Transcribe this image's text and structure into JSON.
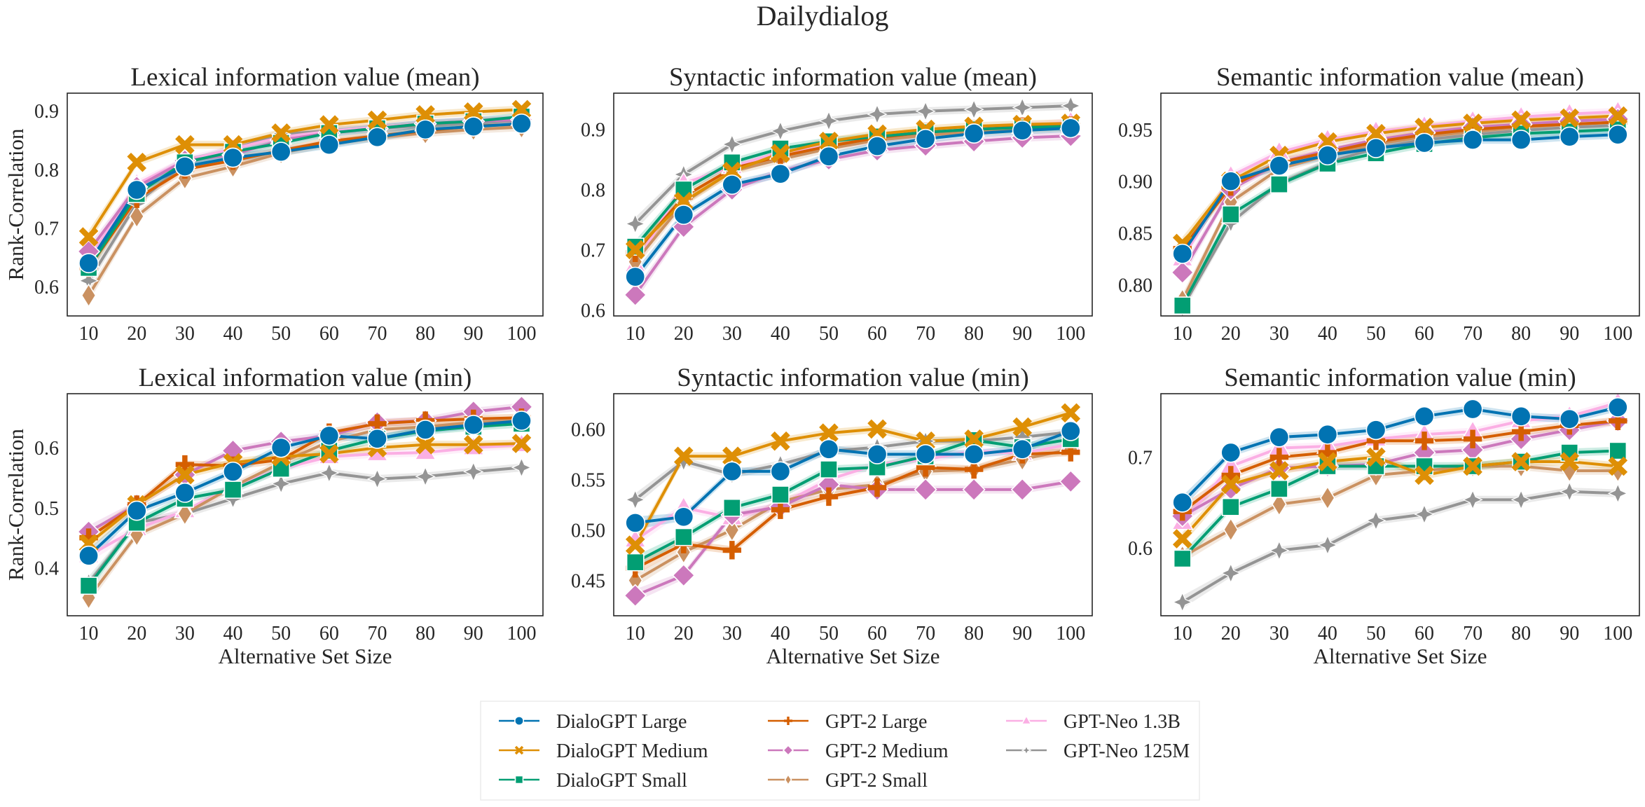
{
  "chart_data": {
    "type": "line",
    "suptitle": "Dailydialog",
    "x": [
      10,
      20,
      30,
      40,
      50,
      60,
      70,
      80,
      90,
      100
    ],
    "xlabel": "Alternative Set Size",
    "ylabel": "Rank-Correlation",
    "colors": {
      "DialoGPT Large": "#0173b2",
      "DialoGPT Medium": "#de8f05",
      "DialoGPT Small": "#029e73",
      "GPT-2 Large": "#d55e00",
      "GPT-2 Medium": "#cc78bc",
      "GPT-2 Small": "#ca9161",
      "GPT-Neo 1.3B": "#fbafe4",
      "GPT-Neo 125M": "#949494"
    },
    "markers": {
      "DialoGPT Large": "circle",
      "DialoGPT Medium": "x",
      "DialoGPT Small": "square",
      "GPT-2 Large": "plus",
      "GPT-2 Medium": "diamond",
      "GPT-2 Small": "thin-diamond",
      "GPT-Neo 1.3B": "triangle",
      "GPT-Neo 125M": "star"
    },
    "legend": {
      "placement": "bottom-center",
      "columns": [
        [
          "DialoGPT Large",
          "DialoGPT Medium",
          "DialoGPT Small"
        ],
        [
          "GPT-2 Large",
          "GPT-2 Medium",
          "GPT-2 Small"
        ],
        [
          "GPT-Neo 1.3B",
          "GPT-Neo 125M"
        ]
      ]
    },
    "panels": [
      {
        "title": "Lexical information value (mean)",
        "ylim": [
          0.55,
          0.93
        ],
        "yticks": [
          0.6,
          0.7,
          0.8,
          0.9
        ],
        "ytick_labels": [
          "0.6",
          "0.7",
          "0.8",
          "0.9"
        ],
        "show_ylabel": true,
        "show_xlabel": false,
        "series": [
          {
            "name": "DialoGPT Large",
            "values": [
              0.64,
              0.765,
              0.805,
              0.82,
              0.83,
              0.842,
              0.855,
              0.868,
              0.873,
              0.878
            ]
          },
          {
            "name": "DialoGPT Medium",
            "values": [
              0.685,
              0.812,
              0.842,
              0.842,
              0.862,
              0.876,
              0.884,
              0.893,
              0.898,
              0.902
            ]
          },
          {
            "name": "DialoGPT Small",
            "values": [
              0.632,
              0.758,
              0.812,
              0.83,
              0.845,
              0.862,
              0.87,
              0.878,
              0.882,
              0.89
            ]
          },
          {
            "name": "GPT-2 Large",
            "values": [
              0.632,
              0.75,
              0.8,
              0.815,
              0.832,
              0.848,
              0.857,
              0.866,
              0.874,
              0.877
            ]
          },
          {
            "name": "GPT-2 Medium",
            "values": [
              0.66,
              0.77,
              0.815,
              0.825,
              0.85,
              0.862,
              0.87,
              0.878,
              0.882,
              0.885
            ]
          },
          {
            "name": "GPT-2 Small",
            "values": [
              0.585,
              0.72,
              0.785,
              0.805,
              0.828,
              0.845,
              0.855,
              0.862,
              0.868,
              0.872
            ]
          },
          {
            "name": "GPT-Neo 1.3B",
            "values": [
              0.645,
              0.775,
              0.815,
              0.835,
              0.855,
              0.865,
              0.872,
              0.878,
              0.883,
              0.887
            ]
          },
          {
            "name": "GPT-Neo 125M",
            "values": [
              0.61,
              0.742,
              0.81,
              0.835,
              0.86,
              0.866,
              0.87,
              0.875,
              0.88,
              0.884
            ]
          }
        ]
      },
      {
        "title": "Syntactic information value (mean)",
        "ylim": [
          0.59,
          0.96
        ],
        "yticks": [
          0.6,
          0.7,
          0.8,
          0.9
        ],
        "ytick_labels": [
          "0.6",
          "0.7",
          "0.8",
          "0.9"
        ],
        "show_ylabel": false,
        "show_xlabel": false,
        "series": [
          {
            "name": "DialoGPT Large",
            "values": [
              0.655,
              0.758,
              0.808,
              0.826,
              0.855,
              0.872,
              0.884,
              0.893,
              0.898,
              0.902
            ]
          },
          {
            "name": "DialoGPT Medium",
            "values": [
              0.7,
              0.78,
              0.83,
              0.86,
              0.88,
              0.892,
              0.9,
              0.905,
              0.908,
              0.91
            ]
          },
          {
            "name": "DialoGPT Small",
            "values": [
              0.705,
              0.8,
              0.845,
              0.868,
              0.88,
              0.888,
              0.895,
              0.9,
              0.903,
              0.905
            ]
          },
          {
            "name": "GPT-2 Large",
            "values": [
              0.695,
              0.788,
              0.835,
              0.855,
              0.872,
              0.886,
              0.895,
              0.9,
              0.904,
              0.906
            ]
          },
          {
            "name": "GPT-2 Medium",
            "values": [
              0.625,
              0.738,
              0.8,
              0.83,
              0.85,
              0.865,
              0.873,
              0.88,
              0.886,
              0.889
            ]
          },
          {
            "name": "GPT-2 Small",
            "values": [
              0.68,
              0.778,
              0.83,
              0.85,
              0.868,
              0.882,
              0.89,
              0.896,
              0.9,
              0.903
            ]
          },
          {
            "name": "GPT-Neo 1.3B",
            "values": [
              0.675,
              0.81,
              0.838,
              0.862,
              0.872,
              0.884,
              0.893,
              0.9,
              0.905,
              0.912
            ]
          },
          {
            "name": "GPT-Neo 125M",
            "values": [
              0.743,
              0.825,
              0.875,
              0.897,
              0.914,
              0.925,
              0.93,
              0.933,
              0.936,
              0.939
            ]
          }
        ]
      },
      {
        "title": "Semantic information value (mean)",
        "ylim": [
          0.77,
          0.985
        ],
        "yticks": [
          0.8,
          0.85,
          0.9,
          0.95
        ],
        "ytick_labels": [
          "0.80",
          "0.85",
          "0.90",
          "0.95"
        ],
        "show_ylabel": false,
        "show_xlabel": false,
        "series": [
          {
            "name": "DialoGPT Large",
            "values": [
              0.83,
              0.9,
              0.915,
              0.925,
              0.932,
              0.937,
              0.94,
              0.94,
              0.943,
              0.945
            ]
          },
          {
            "name": "DialoGPT Medium",
            "values": [
              0.84,
              0.9,
              0.925,
              0.938,
              0.946,
              0.952,
              0.956,
              0.959,
              0.961,
              0.963
            ]
          },
          {
            "name": "DialoGPT Small",
            "values": [
              0.78,
              0.868,
              0.897,
              0.917,
              0.927,
              0.936,
              0.942,
              0.946,
              0.948,
              0.95
            ]
          },
          {
            "name": "GPT-2 Large",
            "values": [
              0.835,
              0.895,
              0.918,
              0.928,
              0.938,
              0.945,
              0.95,
              0.953,
              0.955,
              0.957
            ]
          },
          {
            "name": "GPT-2 Medium",
            "values": [
              0.812,
              0.892,
              0.918,
              0.93,
              0.94,
              0.947,
              0.952,
              0.955,
              0.958,
              0.96
            ]
          },
          {
            "name": "GPT-2 Small",
            "values": [
              0.785,
              0.88,
              0.912,
              0.925,
              0.936,
              0.943,
              0.948,
              0.952,
              0.955,
              0.957
            ]
          },
          {
            "name": "GPT-Neo 1.3B",
            "values": [
              0.825,
              0.905,
              0.928,
              0.94,
              0.948,
              0.953,
              0.958,
              0.962,
              0.965,
              0.967
            ]
          },
          {
            "name": "GPT-Neo 125M",
            "values": [
              0.778,
              0.86,
              0.898,
              0.918,
              0.932,
              0.94,
              0.945,
              0.949,
              0.952,
              0.954
            ]
          }
        ]
      },
      {
        "title": "Lexical information value (min)",
        "ylim": [
          0.32,
          0.69
        ],
        "yticks": [
          0.4,
          0.5,
          0.6
        ],
        "ytick_labels": [
          "0.4",
          "0.5",
          "0.6"
        ],
        "show_ylabel": true,
        "show_xlabel": true,
        "series": [
          {
            "name": "DialoGPT Large",
            "values": [
              0.42,
              0.495,
              0.525,
              0.56,
              0.6,
              0.62,
              0.615,
              0.63,
              0.638,
              0.645
            ]
          },
          {
            "name": "DialoGPT Medium",
            "values": [
              0.44,
              0.505,
              0.555,
              0.575,
              0.585,
              0.59,
              0.6,
              0.605,
              0.605,
              0.607
            ]
          },
          {
            "name": "DialoGPT Small",
            "values": [
              0.37,
              0.475,
              0.515,
              0.53,
              0.565,
              0.595,
              0.615,
              0.628,
              0.635,
              0.64
            ]
          },
          {
            "name": "GPT-2 Large",
            "values": [
              0.45,
              0.505,
              0.572,
              0.57,
              0.58,
              0.625,
              0.64,
              0.645,
              0.648,
              0.65
            ]
          },
          {
            "name": "GPT-2 Medium",
            "values": [
              0.46,
              0.505,
              0.555,
              0.595,
              0.61,
              0.62,
              0.642,
              0.645,
              0.66,
              0.668
            ]
          },
          {
            "name": "GPT-2 Small",
            "values": [
              0.35,
              0.455,
              0.49,
              0.535,
              0.575,
              0.61,
              0.63,
              0.635,
              0.642,
              0.645
            ]
          },
          {
            "name": "GPT-Neo 1.3B",
            "values": [
              0.42,
              0.465,
              0.495,
              0.535,
              0.565,
              0.585,
              0.59,
              0.592,
              0.6,
              0.605
            ]
          },
          {
            "name": "GPT-Neo 125M",
            "values": [
              0.375,
              0.475,
              0.49,
              0.515,
              0.54,
              0.558,
              0.548,
              0.552,
              0.56,
              0.567
            ]
          }
        ]
      },
      {
        "title": "Syntactic information value (min)",
        "ylim": [
          0.415,
          0.635
        ],
        "yticks": [
          0.45,
          0.5,
          0.55,
          0.6
        ],
        "ytick_labels": [
          "0.45",
          "0.50",
          "0.55",
          "0.60"
        ],
        "show_ylabel": false,
        "show_xlabel": true,
        "series": [
          {
            "name": "DialoGPT Large",
            "values": [
              0.507,
              0.513,
              0.558,
              0.558,
              0.58,
              0.575,
              0.575,
              0.575,
              0.58,
              0.598
            ]
          },
          {
            "name": "DialoGPT Medium",
            "values": [
              0.485,
              0.573,
              0.573,
              0.588,
              0.596,
              0.6,
              0.588,
              0.59,
              0.602,
              0.616
            ]
          },
          {
            "name": "DialoGPT Small",
            "values": [
              0.468,
              0.493,
              0.522,
              0.535,
              0.56,
              0.562,
              0.573,
              0.589,
              0.582,
              0.59
            ]
          },
          {
            "name": "GPT-2 Large",
            "values": [
              0.462,
              0.486,
              0.48,
              0.52,
              0.533,
              0.542,
              0.562,
              0.56,
              0.575,
              0.577
            ]
          },
          {
            "name": "GPT-2 Medium",
            "values": [
              0.435,
              0.455,
              0.515,
              0.523,
              0.545,
              0.54,
              0.54,
              0.54,
              0.54,
              0.548
            ]
          },
          {
            "name": "GPT-2 Small",
            "values": [
              0.45,
              0.478,
              0.5,
              0.528,
              0.54,
              0.545,
              0.558,
              0.56,
              0.57,
              0.58
            ]
          },
          {
            "name": "GPT-Neo 1.3B",
            "values": [
              0.49,
              0.522,
              0.512,
              0.525,
              0.55,
              0.565,
              0.57,
              0.578,
              0.576,
              0.585
            ]
          },
          {
            "name": "GPT-Neo 125M",
            "values": [
              0.53,
              0.568,
              0.555,
              0.565,
              0.578,
              0.582,
              0.588,
              0.588,
              0.592,
              0.597
            ]
          }
        ]
      },
      {
        "title": "Semantic information value (min)",
        "ylim": [
          0.525,
          0.77
        ],
        "yticks": [
          0.6,
          0.7
        ],
        "ytick_labels": [
          "0.6",
          "0.7"
        ],
        "show_ylabel": false,
        "show_xlabel": true,
        "series": [
          {
            "name": "DialoGPT Large",
            "values": [
              0.65,
              0.705,
              0.722,
              0.725,
              0.73,
              0.745,
              0.753,
              0.745,
              0.742,
              0.755
            ]
          },
          {
            "name": "DialoGPT Medium",
            "values": [
              0.61,
              0.67,
              0.685,
              0.695,
              0.7,
              0.68,
              0.69,
              0.695,
              0.695,
              0.69
            ]
          },
          {
            "name": "DialoGPT Small",
            "values": [
              0.588,
              0.645,
              0.665,
              0.69,
              0.69,
              0.69,
              0.69,
              0.695,
              0.705,
              0.707
            ]
          },
          {
            "name": "GPT-2 Large",
            "values": [
              0.64,
              0.68,
              0.7,
              0.705,
              0.718,
              0.718,
              0.72,
              0.728,
              0.735,
              0.74
            ]
          },
          {
            "name": "GPT-2 Medium",
            "values": [
              0.635,
              0.665,
              0.688,
              0.69,
              0.692,
              0.705,
              0.708,
              0.72,
              0.73,
              0.74
            ]
          },
          {
            "name": "GPT-2 Small",
            "values": [
              0.59,
              0.62,
              0.648,
              0.655,
              0.68,
              0.685,
              0.69,
              0.69,
              0.685,
              0.685
            ]
          },
          {
            "name": "GPT-Neo 1.3B",
            "values": [
              0.628,
              0.69,
              0.71,
              0.712,
              0.72,
              0.725,
              0.728,
              0.74,
              0.745,
              0.76
            ]
          },
          {
            "name": "GPT-Neo 125M",
            "values": [
              0.54,
              0.572,
              0.597,
              0.603,
              0.63,
              0.637,
              0.653,
              0.653,
              0.662,
              0.66
            ]
          }
        ]
      }
    ]
  }
}
